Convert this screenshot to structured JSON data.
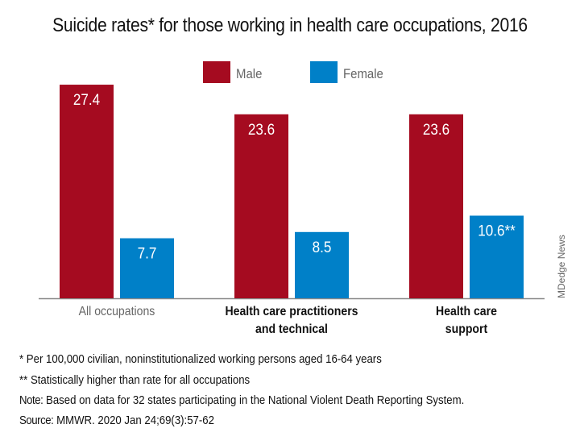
{
  "chart_data": {
    "type": "bar",
    "title": "Suicide rates* for those working in health care occupations, 2016",
    "categories": [
      [
        "All occupations"
      ],
      [
        "Health care practitioners",
        "and technical"
      ],
      [
        "Health care",
        "support"
      ]
    ],
    "category_bold": [
      false,
      true,
      true
    ],
    "series": [
      {
        "name": "Male",
        "color": "#a50b20",
        "values": [
          27.4,
          23.6,
          23.6
        ],
        "labels": [
          "27.4",
          "23.6",
          "23.6"
        ]
      },
      {
        "name": "Female",
        "color": "#0080c8",
        "values": [
          7.7,
          8.5,
          10.6
        ],
        "labels": [
          "7.7",
          "8.5",
          "10.6**"
        ]
      }
    ],
    "ylim": [
      0,
      30
    ],
    "legend": "top-center",
    "grid": false
  },
  "notes": {
    "n1": "* Per 100,000 civilian, noninstitutionalized working persons aged 16-64 years",
    "n2": "** Statistically higher than rate for all occupations",
    "n3_label": "Note:",
    "n3": " Based on data for 32 states participating in the National Violent Death Reporting System.",
    "n4_label": "Source:",
    "n4": " MMWR. 2020 Jan 24;69(3):57-62"
  },
  "credit": "MDedge News"
}
